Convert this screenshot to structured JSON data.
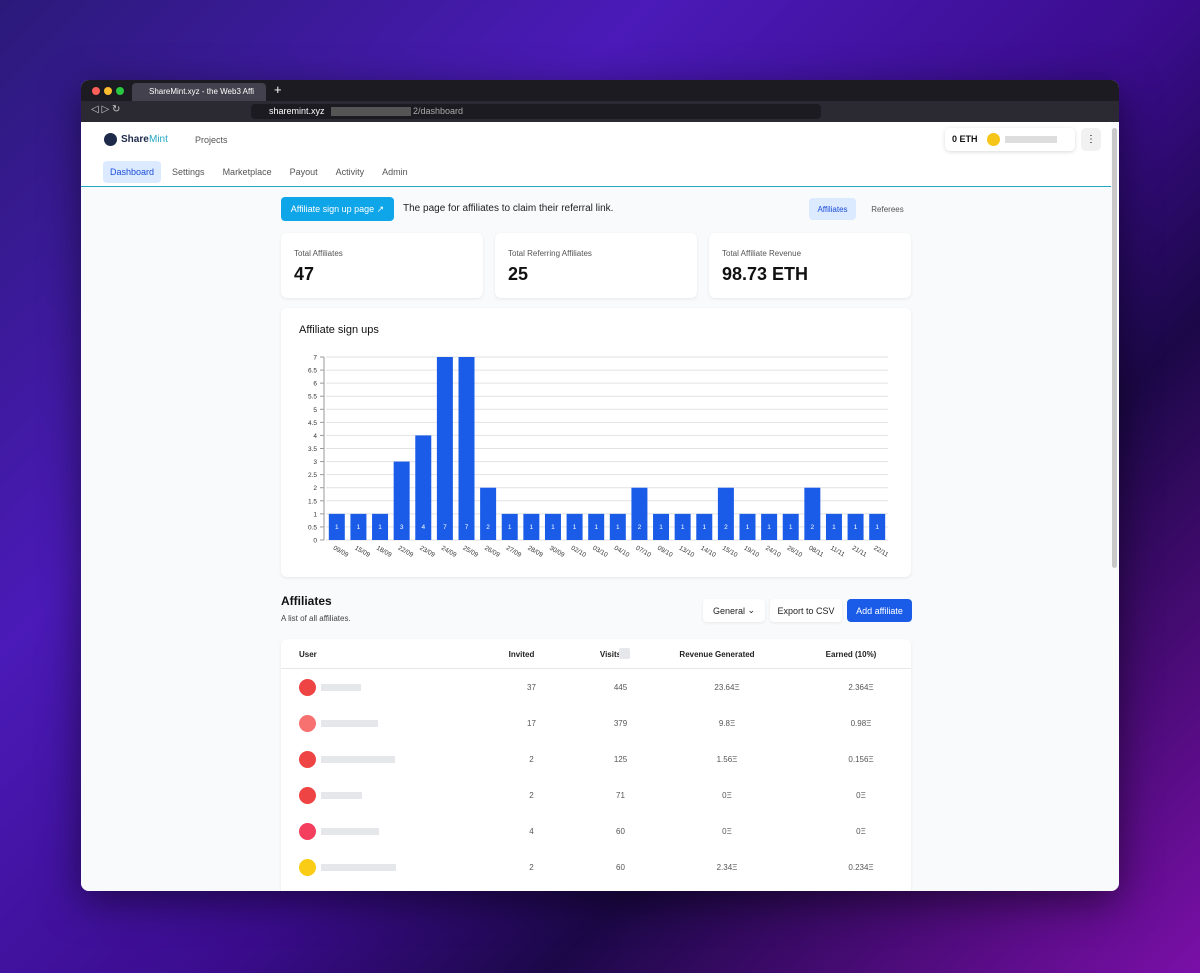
{
  "browser": {
    "tab_title": "ShareMint.xyz - the Web3 Affi",
    "url_host": "sharemint.xyz",
    "url_path": "2/dashboard"
  },
  "header": {
    "logo_a": "Share",
    "logo_b": "Mint",
    "projects": "Projects",
    "balance": "0 ETH",
    "tabs": [
      "Dashboard",
      "Settings",
      "Marketplace",
      "Payout",
      "Activity",
      "Admin"
    ]
  },
  "banner": {
    "button": "Affiliate sign up page",
    "text": "The page for affiliates to claim their referral link.",
    "toggle": [
      "Affiliates",
      "Referees"
    ]
  },
  "stats": [
    {
      "label": "Total Affiliates",
      "value": 47
    },
    {
      "label": "Total Referring Affiliates",
      "value": 25
    },
    {
      "label": "Total Affiliate Revenue",
      "value": "98.73 ETH"
    }
  ],
  "chart_data": {
    "type": "bar",
    "title": "Affiliate sign ups",
    "categories": [
      "09/09",
      "15/09",
      "18/09",
      "22/09",
      "23/09",
      "24/09",
      "25/09",
      "26/09",
      "27/09",
      "28/09",
      "30/09",
      "02/10",
      "03/10",
      "04/10",
      "07/10",
      "09/10",
      "13/10",
      "14/10",
      "15/10",
      "19/10",
      "24/10",
      "26/10",
      "08/11",
      "11/11",
      "21/11",
      "22/11"
    ],
    "values": [
      1,
      1,
      1,
      3,
      4,
      7,
      7,
      2,
      1,
      1,
      1,
      1,
      1,
      1,
      2,
      1,
      1,
      1,
      2,
      1,
      1,
      1,
      2,
      1,
      1,
      1
    ],
    "color": "#1a5ce8",
    "ylim": [
      0,
      7
    ],
    "yticks": [
      0,
      0.5,
      1,
      1.5,
      2,
      2.5,
      3,
      3.5,
      4,
      4.5,
      5,
      5.5,
      6,
      6.5,
      7
    ],
    "grid": true
  },
  "affiliates": {
    "title": "Affiliates",
    "subtitle": "A list of all affiliates.",
    "filter": "General",
    "export": "Export to CSV",
    "add": "Add affiliate",
    "table": {
      "columns": [
        "User",
        "Invited",
        "Visits",
        "Revenue Generated",
        "Earned (10%)"
      ],
      "rows": [
        [
          37,
          445,
          "23.64Ξ",
          "2.364Ξ"
        ],
        [
          17,
          379,
          "9.8Ξ",
          "0.98Ξ"
        ],
        [
          2,
          125,
          "1.56Ξ",
          "0.156Ξ"
        ],
        [
          2,
          71,
          "0Ξ",
          "0Ξ"
        ],
        [
          4,
          60,
          "0Ξ",
          "0Ξ"
        ],
        [
          2,
          60,
          "2.34Ξ",
          "0.234Ξ"
        ]
      ]
    }
  }
}
